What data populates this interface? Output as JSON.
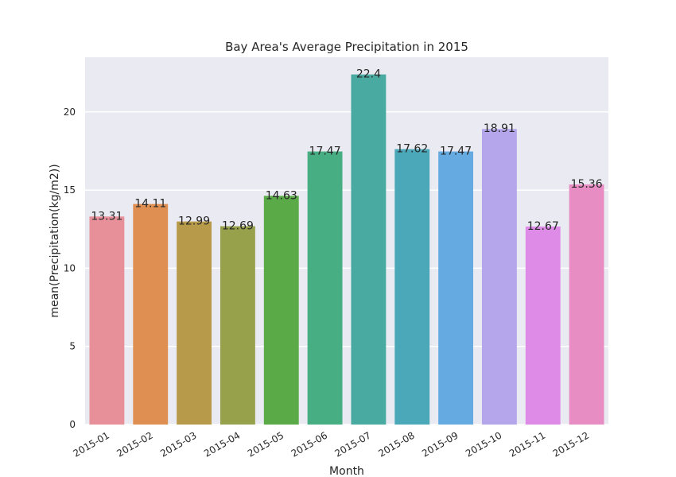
{
  "chart_data": {
    "type": "bar",
    "title": "Bay Area's Average Precipitation in 2015",
    "xlabel": "Month",
    "ylabel": "mean(Precipitation(kg/m2))",
    "categories": [
      "2015-01",
      "2015-02",
      "2015-03",
      "2015-04",
      "2015-05",
      "2015-06",
      "2015-07",
      "2015-08",
      "2015-09",
      "2015-10",
      "2015-11",
      "2015-12"
    ],
    "values": [
      13.31,
      14.11,
      12.99,
      12.69,
      14.63,
      17.47,
      22.4,
      17.62,
      17.47,
      18.91,
      12.67,
      15.36
    ],
    "data_labels": [
      "13.31",
      "14.11",
      "12.99",
      "12.69",
      "14.63",
      "17.47",
      "22.4",
      "17.62",
      "17.47",
      "18.91",
      "12.67",
      "15.36"
    ],
    "colors": [
      "#e8909a",
      "#e08f52",
      "#b89b4a",
      "#97a04b",
      "#5aaa48",
      "#47ad82",
      "#48aaa0",
      "#4aa8b8",
      "#65aae0",
      "#b5a6ec",
      "#de8be8",
      "#e88dc3"
    ],
    "yticks": [
      0,
      5,
      10,
      15,
      20
    ],
    "ylim": [
      0,
      23.5
    ],
    "grid": true,
    "background": "#eaeaf2"
  }
}
